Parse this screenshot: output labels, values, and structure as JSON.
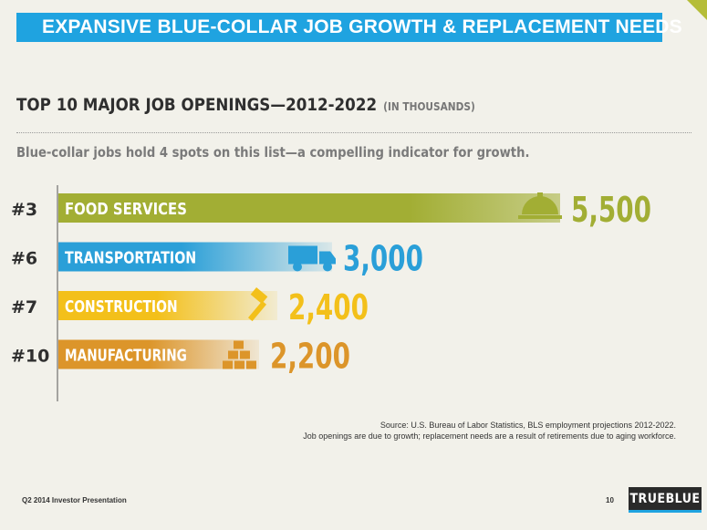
{
  "banner_title": "EXPANSIVE BLUE-COLLAR JOB GROWTH & REPLACEMENT NEEDS",
  "chart_data": {
    "type": "bar",
    "orientation": "horizontal",
    "title": "TOP 10 MAJOR JOB OPENINGS—2012-2022",
    "units": "(IN THOUSANDS)",
    "subtitle": "Blue-collar jobs hold 4 spots on this list—a compelling indicator for growth.",
    "categories": [
      "FOOD SERVICES",
      "TRANSPORTATION",
      "CONSTRUCTION",
      "MANUFACTURING"
    ],
    "ranks": [
      "#3",
      "#6",
      "#7",
      "#10"
    ],
    "values": [
      5500,
      3000,
      2400,
      2200
    ],
    "value_labels": [
      "5,500",
      "3,000",
      "2,400",
      "2,200"
    ],
    "icons": [
      "service-bell-icon",
      "truck-icon",
      "hammer-icon",
      "stacked-boxes-icon"
    ],
    "colors": [
      "#a2ae34",
      "#2a9fd8",
      "#f3c01a",
      "#dc952a"
    ],
    "grid": false,
    "legend": "none"
  },
  "source": {
    "line1": "Source: U.S. Bureau of Labor Statistics, BLS employment projections 2012-2022.",
    "line2": "Job openings are due to growth; replacement needs are a result of retirements due to aging workforce."
  },
  "footer": {
    "presentation": "Q2 2014 Investor Presentation",
    "page": "10",
    "logo": "TRUEBLUE"
  }
}
